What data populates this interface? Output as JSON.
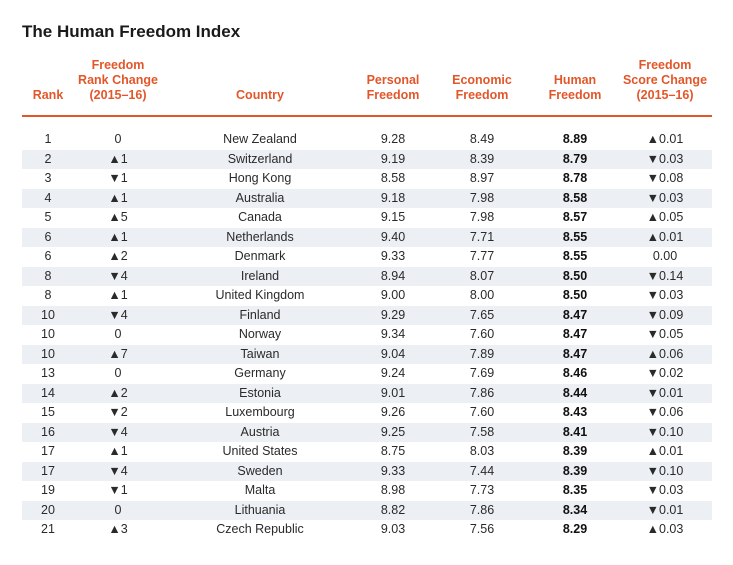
{
  "title": "The Human Freedom Index",
  "table": {
    "headers": [
      [
        "Rank"
      ],
      [
        "Freedom",
        "Rank Change",
        "(2015–16)"
      ],
      [
        "Country"
      ],
      [
        "Personal",
        "Freedom"
      ],
      [
        "Economic",
        "Freedom"
      ],
      [
        "Human",
        "Freedom"
      ],
      [
        "Freedom",
        "Score Change",
        "(2015–16)"
      ]
    ],
    "rows": [
      [
        "1",
        "0",
        "New Zealand",
        "9.28",
        "8.49",
        "8.89",
        "▲0.01"
      ],
      [
        "2",
        "▲1",
        "Switzerland",
        "9.19",
        "8.39",
        "8.79",
        "▼0.03"
      ],
      [
        "3",
        "▼1",
        "Hong Kong",
        "8.58",
        "8.97",
        "8.78",
        "▼0.08"
      ],
      [
        "4",
        "▲1",
        "Australia",
        "9.18",
        "7.98",
        "8.58",
        "▼0.03"
      ],
      [
        "5",
        "▲5",
        "Canada",
        "9.15",
        "7.98",
        "8.57",
        "▲0.05"
      ],
      [
        "6",
        "▲1",
        "Netherlands",
        "9.40",
        "7.71",
        "8.55",
        "▲0.01"
      ],
      [
        "6",
        "▲2",
        "Denmark",
        "9.33",
        "7.77",
        "8.55",
        "0.00"
      ],
      [
        "8",
        "▼4",
        "Ireland",
        "8.94",
        "8.07",
        "8.50",
        "▼0.14"
      ],
      [
        "8",
        "▲1",
        "United Kingdom",
        "9.00",
        "8.00",
        "8.50",
        "▼0.03"
      ],
      [
        "10",
        "▼4",
        "Finland",
        "9.29",
        "7.65",
        "8.47",
        "▼0.09"
      ],
      [
        "10",
        "0",
        "Norway",
        "9.34",
        "7.60",
        "8.47",
        "▼0.05"
      ],
      [
        "10",
        "▲7",
        "Taiwan",
        "9.04",
        "7.89",
        "8.47",
        "▲0.06"
      ],
      [
        "13",
        "0",
        "Germany",
        "9.24",
        "7.69",
        "8.46",
        "▼0.02"
      ],
      [
        "14",
        "▲2",
        "Estonia",
        "9.01",
        "7.86",
        "8.44",
        "▼0.01"
      ],
      [
        "15",
        "▼2",
        "Luxembourg",
        "9.26",
        "7.60",
        "8.43",
        "▼0.06"
      ],
      [
        "16",
        "▼4",
        "Austria",
        "9.25",
        "7.58",
        "8.41",
        "▼0.10"
      ],
      [
        "17",
        "▲1",
        "United States",
        "8.75",
        "8.03",
        "8.39",
        "▲0.01"
      ],
      [
        "17",
        "▼4",
        "Sweden",
        "9.33",
        "7.44",
        "8.39",
        "▼0.10"
      ],
      [
        "19",
        "▼1",
        "Malta",
        "8.98",
        "7.73",
        "8.35",
        "▼0.03"
      ],
      [
        "20",
        "0",
        "Lithuania",
        "8.82",
        "7.86",
        "8.34",
        "▼0.01"
      ],
      [
        "21",
        "▲3",
        "Czech Republic",
        "9.03",
        "7.56",
        "8.29",
        "▲0.03"
      ]
    ]
  }
}
